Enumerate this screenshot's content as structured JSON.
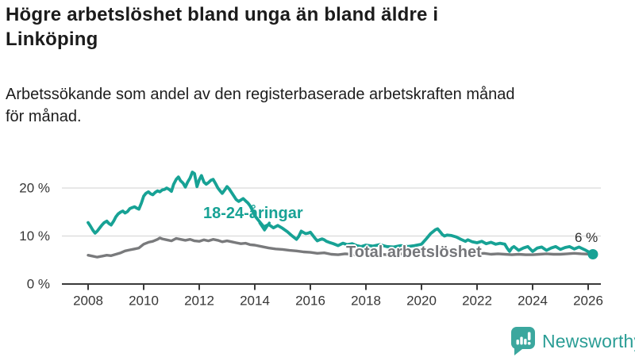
{
  "header": {
    "title_lines": [
      "Högre arbetslöshet bland unga än bland äldre i",
      "Linköping"
    ],
    "subtitle_lines": [
      "Arbetssökande som andel av den registerbaserade arbetskraften månad",
      "för månad."
    ]
  },
  "colors": {
    "youth": "#17A295",
    "total": "#797a7c",
    "grid": "#d9d9d9",
    "axis": "#3a3a3a",
    "tick_text": "#363636",
    "logo_teal": "#3BA79E",
    "logo_text": "#2A9D95"
  },
  "logo": {
    "text": "Newsworthy"
  },
  "chart_data": {
    "type": "line",
    "title": "Högre arbetslöshet bland unga än bland äldre i Linköping",
    "subtitle": "Arbetssökande som andel av den registerbaserade arbetskraften månad för månad.",
    "xlabel": "",
    "ylabel": "",
    "xlim": [
      2007.7,
      2026.45
    ],
    "ylim": [
      0,
      24.5
    ],
    "grid": "horizontal",
    "legend_position": "inline-labels",
    "x_ticks": [
      2008,
      2010,
      2012,
      2014,
      2016,
      2018,
      2020,
      2022,
      2024,
      2026
    ],
    "y_ticks": [
      {
        "value": 0,
        "label": "0 %"
      },
      {
        "value": 10,
        "label": "10 %"
      },
      {
        "value": 20,
        "label": "20 %"
      }
    ],
    "series": [
      {
        "name": "18-24-åringar",
        "color": "#17A295",
        "points": [
          [
            2008.0,
            12.8
          ],
          [
            2008.08,
            12.1
          ],
          [
            2008.17,
            11.2
          ],
          [
            2008.25,
            10.6
          ],
          [
            2008.33,
            11.0
          ],
          [
            2008.42,
            11.7
          ],
          [
            2008.5,
            12.3
          ],
          [
            2008.58,
            12.8
          ],
          [
            2008.67,
            13.1
          ],
          [
            2008.75,
            12.6
          ],
          [
            2008.83,
            12.3
          ],
          [
            2008.92,
            13.1
          ],
          [
            2009.0,
            14.0
          ],
          [
            2009.08,
            14.6
          ],
          [
            2009.17,
            15.0
          ],
          [
            2009.25,
            15.2
          ],
          [
            2009.33,
            14.8
          ],
          [
            2009.42,
            15.1
          ],
          [
            2009.5,
            15.7
          ],
          [
            2009.58,
            15.9
          ],
          [
            2009.67,
            16.1
          ],
          [
            2009.75,
            15.8
          ],
          [
            2009.83,
            15.6
          ],
          [
            2009.92,
            16.9
          ],
          [
            2010.0,
            18.3
          ],
          [
            2010.08,
            18.9
          ],
          [
            2010.17,
            19.2
          ],
          [
            2010.25,
            18.8
          ],
          [
            2010.33,
            18.6
          ],
          [
            2010.42,
            19.1
          ],
          [
            2010.5,
            19.4
          ],
          [
            2010.58,
            19.2
          ],
          [
            2010.67,
            19.6
          ],
          [
            2010.75,
            19.7
          ],
          [
            2010.83,
            20.0
          ],
          [
            2010.92,
            19.7
          ],
          [
            2011.0,
            19.3
          ],
          [
            2011.08,
            20.8
          ],
          [
            2011.17,
            21.8
          ],
          [
            2011.25,
            22.3
          ],
          [
            2011.33,
            21.5
          ],
          [
            2011.42,
            21.0
          ],
          [
            2011.5,
            20.2
          ],
          [
            2011.58,
            21.2
          ],
          [
            2011.67,
            22.1
          ],
          [
            2011.75,
            23.3
          ],
          [
            2011.83,
            23.0
          ],
          [
            2011.92,
            20.3
          ],
          [
            2012.0,
            21.7
          ],
          [
            2012.08,
            22.6
          ],
          [
            2012.17,
            21.2
          ],
          [
            2012.25,
            20.8
          ],
          [
            2012.33,
            21.1
          ],
          [
            2012.42,
            21.6
          ],
          [
            2012.5,
            21.8
          ],
          [
            2012.58,
            21.0
          ],
          [
            2012.67,
            20.0
          ],
          [
            2012.75,
            19.4
          ],
          [
            2012.83,
            18.9
          ],
          [
            2012.92,
            19.6
          ],
          [
            2013.0,
            20.3
          ],
          [
            2013.08,
            19.8
          ],
          [
            2013.17,
            19.0
          ],
          [
            2013.25,
            18.3
          ],
          [
            2013.33,
            17.6
          ],
          [
            2013.42,
            17.2
          ],
          [
            2013.5,
            17.5
          ],
          [
            2013.58,
            17.8
          ],
          [
            2013.67,
            17.3
          ],
          [
            2013.75,
            16.9
          ],
          [
            2013.83,
            16.3
          ],
          [
            2013.92,
            15.3
          ],
          [
            2014.0,
            14.2
          ],
          [
            2014.17,
            13.0
          ],
          [
            2014.33,
            11.9
          ],
          [
            2014.5,
            12.4
          ],
          [
            2014.67,
            11.7
          ],
          [
            2014.83,
            12.2
          ],
          [
            2015.0,
            11.6
          ],
          [
            2015.17,
            10.9
          ],
          [
            2015.33,
            10.1
          ],
          [
            2015.5,
            9.3
          ],
          [
            2015.58,
            9.9
          ],
          [
            2015.67,
            11.0
          ],
          [
            2015.83,
            10.5
          ],
          [
            2015.92,
            10.6
          ],
          [
            2016.0,
            10.8
          ],
          [
            2016.08,
            10.2
          ],
          [
            2016.17,
            9.5
          ],
          [
            2016.25,
            9.0
          ],
          [
            2016.33,
            9.2
          ],
          [
            2016.42,
            9.4
          ],
          [
            2016.5,
            9.2
          ],
          [
            2016.58,
            8.9
          ],
          [
            2016.67,
            8.7
          ],
          [
            2016.83,
            8.4
          ],
          [
            2017.0,
            8.0
          ],
          [
            2017.17,
            8.5
          ],
          [
            2017.33,
            8.2
          ],
          [
            2017.5,
            8.4
          ],
          [
            2017.67,
            8.0
          ],
          [
            2017.83,
            7.8
          ],
          [
            2018.0,
            8.1
          ],
          [
            2018.25,
            7.9
          ],
          [
            2018.5,
            8.2
          ],
          [
            2018.75,
            7.8
          ],
          [
            2019.0,
            7.7
          ],
          [
            2019.25,
            8.0
          ],
          [
            2019.5,
            7.8
          ],
          [
            2019.75,
            8.0
          ],
          [
            2020.0,
            8.3
          ],
          [
            2020.17,
            9.4
          ],
          [
            2020.33,
            10.5
          ],
          [
            2020.5,
            11.3
          ],
          [
            2020.58,
            11.5
          ],
          [
            2020.67,
            10.9
          ],
          [
            2020.75,
            10.3
          ],
          [
            2020.83,
            10.0
          ],
          [
            2020.92,
            10.2
          ],
          [
            2021.08,
            10.1
          ],
          [
            2021.25,
            9.8
          ],
          [
            2021.42,
            9.3
          ],
          [
            2021.58,
            8.9
          ],
          [
            2021.67,
            9.2
          ],
          [
            2021.83,
            8.8
          ],
          [
            2022.0,
            8.6
          ],
          [
            2022.17,
            8.9
          ],
          [
            2022.33,
            8.4
          ],
          [
            2022.5,
            8.7
          ],
          [
            2022.67,
            8.3
          ],
          [
            2022.83,
            8.5
          ],
          [
            2023.0,
            8.3
          ],
          [
            2023.08,
            7.5
          ],
          [
            2023.17,
            6.8
          ],
          [
            2023.25,
            7.5
          ],
          [
            2023.33,
            7.8
          ],
          [
            2023.5,
            7.0
          ],
          [
            2023.67,
            7.5
          ],
          [
            2023.83,
            7.8
          ],
          [
            2024.0,
            6.8
          ],
          [
            2024.17,
            7.5
          ],
          [
            2024.33,
            7.7
          ],
          [
            2024.5,
            7.0
          ],
          [
            2024.67,
            7.5
          ],
          [
            2024.83,
            7.8
          ],
          [
            2025.0,
            7.2
          ],
          [
            2025.17,
            7.6
          ],
          [
            2025.33,
            7.8
          ],
          [
            2025.5,
            7.3
          ],
          [
            2025.67,
            7.7
          ],
          [
            2025.92,
            7.0
          ],
          [
            2026.17,
            6.2
          ]
        ]
      },
      {
        "name": "Total arbetslöshet",
        "color": "#797a7c",
        "points": [
          [
            2008.0,
            6.0
          ],
          [
            2008.17,
            5.8
          ],
          [
            2008.33,
            5.6
          ],
          [
            2008.5,
            5.8
          ],
          [
            2008.67,
            6.0
          ],
          [
            2008.83,
            5.9
          ],
          [
            2009.0,
            6.2
          ],
          [
            2009.17,
            6.5
          ],
          [
            2009.33,
            6.9
          ],
          [
            2009.5,
            7.1
          ],
          [
            2009.67,
            7.3
          ],
          [
            2009.83,
            7.5
          ],
          [
            2010.0,
            8.3
          ],
          [
            2010.17,
            8.7
          ],
          [
            2010.33,
            8.9
          ],
          [
            2010.5,
            9.3
          ],
          [
            2010.58,
            9.6
          ],
          [
            2010.67,
            9.4
          ],
          [
            2010.83,
            9.2
          ],
          [
            2011.0,
            9.0
          ],
          [
            2011.17,
            9.5
          ],
          [
            2011.33,
            9.3
          ],
          [
            2011.5,
            9.1
          ],
          [
            2011.67,
            9.3
          ],
          [
            2011.83,
            9.0
          ],
          [
            2012.0,
            8.9
          ],
          [
            2012.17,
            9.2
          ],
          [
            2012.33,
            9.0
          ],
          [
            2012.5,
            9.3
          ],
          [
            2012.67,
            9.1
          ],
          [
            2012.83,
            8.8
          ],
          [
            2013.0,
            9.0
          ],
          [
            2013.17,
            8.8
          ],
          [
            2013.33,
            8.6
          ],
          [
            2013.5,
            8.4
          ],
          [
            2013.67,
            8.5
          ],
          [
            2013.83,
            8.2
          ],
          [
            2014.0,
            8.1
          ],
          [
            2014.25,
            7.8
          ],
          [
            2014.5,
            7.5
          ],
          [
            2014.75,
            7.3
          ],
          [
            2015.0,
            7.2
          ],
          [
            2015.25,
            7.0
          ],
          [
            2015.5,
            6.9
          ],
          [
            2015.75,
            6.7
          ],
          [
            2016.0,
            6.6
          ],
          [
            2016.25,
            6.4
          ],
          [
            2016.5,
            6.5
          ],
          [
            2016.75,
            6.2
          ],
          [
            2017.0,
            6.1
          ],
          [
            2017.25,
            6.3
          ],
          [
            2017.5,
            6.2
          ],
          [
            2017.75,
            6.0
          ],
          [
            2018.0,
            6.1
          ],
          [
            2018.25,
            6.3
          ],
          [
            2018.5,
            6.2
          ],
          [
            2018.75,
            6.1
          ],
          [
            2019.0,
            6.2
          ],
          [
            2019.25,
            6.3
          ],
          [
            2019.5,
            6.2
          ],
          [
            2019.75,
            6.4
          ],
          [
            2020.0,
            6.6
          ],
          [
            2020.25,
            7.0
          ],
          [
            2020.5,
            7.2
          ],
          [
            2020.75,
            7.1
          ],
          [
            2021.0,
            7.0
          ],
          [
            2021.25,
            6.8
          ],
          [
            2021.5,
            6.6
          ],
          [
            2021.75,
            6.4
          ],
          [
            2022.0,
            6.3
          ],
          [
            2022.25,
            6.4
          ],
          [
            2022.5,
            6.2
          ],
          [
            2022.75,
            6.3
          ],
          [
            2023.0,
            6.2
          ],
          [
            2023.25,
            6.1
          ],
          [
            2023.5,
            6.2
          ],
          [
            2023.75,
            6.1
          ],
          [
            2024.0,
            6.1
          ],
          [
            2024.25,
            6.2
          ],
          [
            2024.5,
            6.3
          ],
          [
            2024.75,
            6.2
          ],
          [
            2025.0,
            6.2
          ],
          [
            2025.25,
            6.3
          ],
          [
            2025.5,
            6.4
          ],
          [
            2025.75,
            6.3
          ],
          [
            2026.17,
            6.2
          ]
        ]
      }
    ],
    "annotations": {
      "end_label": "6 %",
      "end_point": [
        2026.17,
        6.2
      ],
      "arrow": {
        "tip_x": 2014.35,
        "tip_y": 10.9
      }
    }
  }
}
